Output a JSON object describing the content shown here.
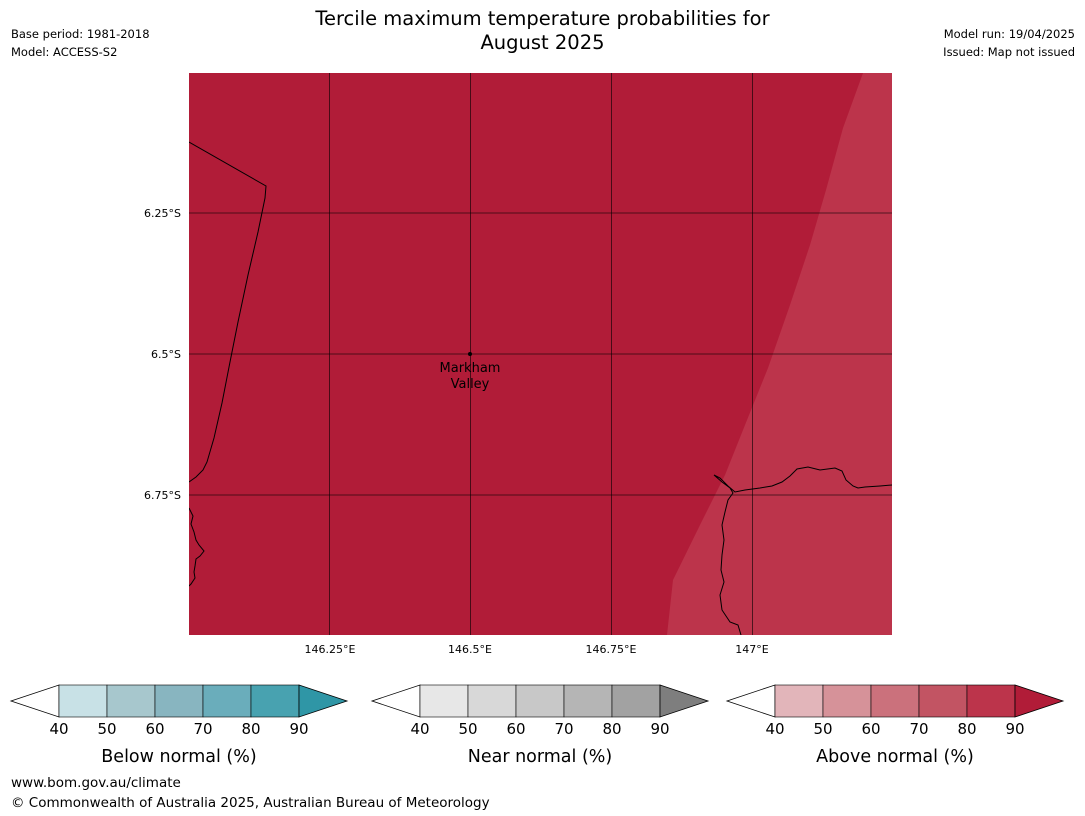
{
  "title": {
    "line1": "Tercile maximum temperature probabilities for",
    "line2": "August 2025"
  },
  "meta": {
    "base_period": "Base period: 1981-2018",
    "model": "Model: ACCESS-S2",
    "model_run": "Model run: 19/04/2025",
    "issued": "Issued: Map not issued"
  },
  "map": {
    "lat_labels": [
      "6.25°S",
      "6.5°S",
      "6.75°S"
    ],
    "lon_labels": [
      "146.25°E",
      "146.5°E",
      "146.75°E",
      "147°E"
    ],
    "place": {
      "line1": "Markham",
      "line2": "Valley"
    },
    "fill_colors": {
      "above_90": "#b11c38",
      "above_80": "#bc344b"
    }
  },
  "colorbars": [
    {
      "label": "Below normal (%)",
      "ticks": [
        "40",
        "50",
        "60",
        "70",
        "80",
        "90"
      ],
      "colors": [
        "#ffffff",
        "#c8e1e6",
        "#a7c7cd",
        "#88b5c0",
        "#6aadbb",
        "#48a2b0",
        "#2f96a6"
      ]
    },
    {
      "label": "Near normal (%)",
      "ticks": [
        "40",
        "50",
        "60",
        "70",
        "80",
        "90"
      ],
      "colors": [
        "#ffffff",
        "#e7e7e7",
        "#d8d8d8",
        "#c8c8c8",
        "#b5b5b5",
        "#a2a2a2",
        "#7e7e7e"
      ]
    },
    {
      "label": "Above normal (%)",
      "ticks": [
        "40",
        "50",
        "60",
        "70",
        "80",
        "90"
      ],
      "colors": [
        "#ffffff",
        "#e2b5ba",
        "#d69299",
        "#cb717c",
        "#c25463",
        "#bc344b",
        "#b11c38"
      ]
    }
  ],
  "footer": {
    "url": "www.bom.gov.au/climate",
    "copyright": "© Commonwealth of Australia 2025, Australian Bureau of Meteorology"
  }
}
